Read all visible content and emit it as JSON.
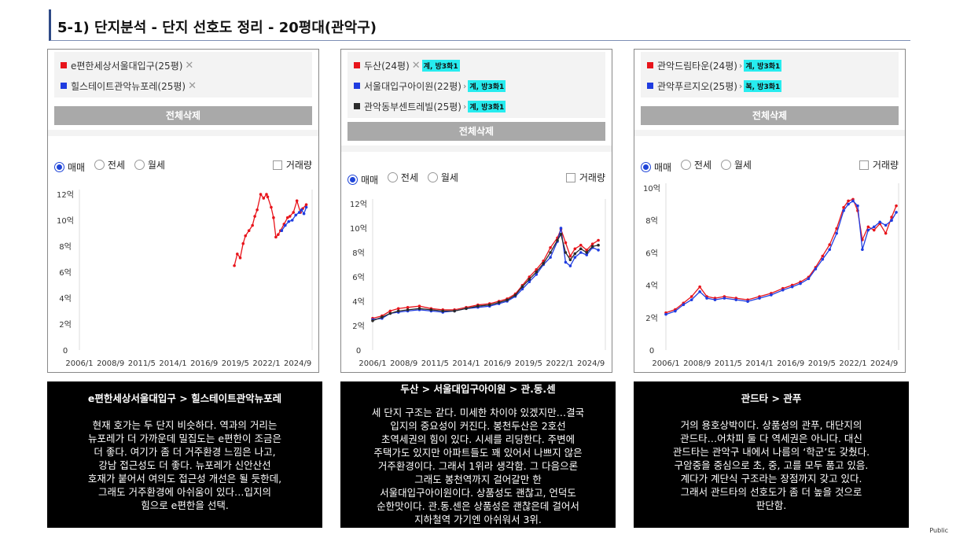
{
  "title": "5-1) 단지분석 - 단지 선호도 정리 - 20평대(관악구)",
  "common": {
    "delete_all": "전체삭제",
    "radio_sale": "매매",
    "radio_jeonse": "전세",
    "radio_monthly": "월세",
    "volume": "거래량",
    "x_ticks": [
      "2006/1",
      "2008/9",
      "2011/5",
      "2014/1",
      "2016/9",
      "2019/5",
      "2022/1",
      "2024/9"
    ]
  },
  "footer": {
    "public": "Public"
  },
  "colors": {
    "red": "#e8141b",
    "blue": "#1f3ce0",
    "black": "#2b2b2b",
    "highlight": "#27ecef"
  },
  "panels": [
    {
      "tags": [
        {
          "name": "e편한세상서울대입구(25평)",
          "color": "#e8141b",
          "close": "✕",
          "note": ""
        },
        {
          "name": "힐스테이트관악뉴포레(25평)",
          "color": "#1f3ce0",
          "close": "✕",
          "note": ""
        }
      ],
      "description": {
        "title": "e편한세상서울대입구 > 힐스테이트관악뉴포레",
        "lines": [
          "현재 호가는 두 단지 비슷하다. 역과의 거리는",
          "뉴포레가 더 가까운데 밀집도는 e편한이 조금은",
          "더 좋다. 여기가 좀 더 거주환경 느낌은 나고,",
          "강남 접근성도 더 좋다. 뉴포레가 신안산선",
          "호재가 붙어서 여의도 접근성 개선은 될 듯한데,",
          "그래도 거주환경에 아쉬움이 있다…입지의",
          "힘으로 e편한을 선택."
        ]
      },
      "chart_data": {
        "type": "line",
        "y_ticks": [
          "0",
          "2억",
          "4억",
          "6억",
          "8억",
          "10억",
          "12억"
        ],
        "ylim": [
          0,
          12
        ],
        "xlim": [
          2006.0,
          2025.9
        ],
        "series": [
          {
            "color": "#e8141b",
            "x": [
              2019.25,
              2019.5,
              2019.75,
              2020.0,
              2020.2,
              2020.5,
              2020.8,
              2021.0,
              2021.2,
              2021.5,
              2021.75,
              2022.0,
              2022.1,
              2022.4,
              2022.6,
              2022.8,
              2023.0,
              2023.2,
              2023.5,
              2023.8,
              2024.0,
              2024.3,
              2024.6,
              2024.9,
              2025.1,
              2025.4
            ],
            "y": [
              6.5,
              7.4,
              7.1,
              8.2,
              8.8,
              9.2,
              9.6,
              10.3,
              10.8,
              12.0,
              11.7,
              12.0,
              11.8,
              11.0,
              10.2,
              8.7,
              8.9,
              9.2,
              9.7,
              10.2,
              10.3,
              10.6,
              11.5,
              10.6,
              10.9,
              11.2
            ]
          },
          {
            "color": "#1f3ce0",
            "x": [
              2023.3,
              2023.6,
              2023.9,
              2024.2,
              2024.5,
              2024.8,
              2025.0,
              2025.2,
              2025.4
            ],
            "y": [
              9.2,
              9.6,
              9.9,
              10.0,
              10.4,
              10.6,
              10.8,
              10.5,
              11.0
            ]
          }
        ]
      }
    },
    {
      "tags": [
        {
          "name": "두산(24평)",
          "color": "#e8141b",
          "close": "✕",
          "note": "계, 방3화1"
        },
        {
          "name": "서울대입구아이원(22평)",
          "color": "#1f3ce0",
          "close": "",
          "note": "계, 방3화1"
        },
        {
          "name": "관악동부센트레빌(25평)",
          "color": "#2b2b2b",
          "close": "",
          "note": "계, 방3화1"
        }
      ],
      "description": {
        "title": "두산 > 서울대입구아이원 > 관.동.센",
        "lines": [
          "세 단지 구조는 같다. 미세한 차이야 있겠지만…결국",
          "입지의 중요성이 커진다. 봉천두산은 2호선",
          "초역세권의 힘이 있다. 시세를 리딩한다. 주변에",
          "주택가도 있지만 아파트들도 꽤 있어서 나쁘지 않은",
          "거주환경이다. 그래서 1위라 생각함. 그 다음으론",
          "그래도 봉천역까지 걸어갈만 한",
          "서울대입구아이원이다. 상품성도 괜찮고, 언덕도",
          "순한맛이다. 관.동.센은 상품성은 괜찮은데 걸어서",
          "지하철역 가기엔 아쉬워서 3위."
        ]
      },
      "chart_data": {
        "type": "line",
        "y_ticks": [
          "0",
          "2억",
          "4억",
          "6억",
          "8억",
          "10억",
          "12억"
        ],
        "ylim": [
          0,
          12
        ],
        "xlim": [
          2006.0,
          2025.9
        ],
        "series": [
          {
            "color": "#e8141b",
            "x": [
              2006.0,
              2006.8,
              2007.5,
              2008.2,
              2009.0,
              2010.0,
              2011.0,
              2012.0,
              2013.0,
              2014.0,
              2015.0,
              2016.0,
              2016.8,
              2017.5,
              2018.2,
              2018.8,
              2019.4,
              2020.0,
              2020.6,
              2021.2,
              2021.8,
              2022.1,
              2022.5,
              2022.9,
              2023.3,
              2023.8,
              2024.3,
              2024.8,
              2025.3
            ],
            "y": [
              2.6,
              2.8,
              3.2,
              3.4,
              3.5,
              3.6,
              3.4,
              3.3,
              3.3,
              3.5,
              3.7,
              3.8,
              4.0,
              4.2,
              4.6,
              5.3,
              6.0,
              6.6,
              7.3,
              8.4,
              9.2,
              9.9,
              8.8,
              7.7,
              8.3,
              8.6,
              8.2,
              8.7,
              9.0
            ]
          },
          {
            "color": "#1f3ce0",
            "x": [
              2006.0,
              2006.8,
              2007.5,
              2008.2,
              2009.0,
              2010.0,
              2011.0,
              2012.0,
              2013.0,
              2014.0,
              2015.0,
              2016.0,
              2016.8,
              2017.5,
              2018.2,
              2018.8,
              2019.4,
              2020.0,
              2020.6,
              2021.2,
              2021.8,
              2022.1,
              2022.5,
              2022.9,
              2023.3,
              2023.8,
              2024.3,
              2024.8,
              2025.3
            ],
            "y": [
              2.5,
              2.6,
              3.0,
              3.1,
              3.2,
              3.3,
              3.2,
              3.1,
              3.2,
              3.4,
              3.5,
              3.6,
              3.8,
              4.0,
              4.4,
              5.0,
              5.6,
              6.2,
              7.0,
              7.6,
              8.9,
              10.0,
              7.2,
              6.9,
              7.6,
              8.0,
              7.8,
              8.4,
              8.2
            ]
          },
          {
            "color": "#2b2b2b",
            "x": [
              2006.0,
              2006.8,
              2007.5,
              2008.2,
              2009.0,
              2010.0,
              2011.0,
              2012.0,
              2013.0,
              2014.0,
              2015.0,
              2016.0,
              2016.8,
              2017.5,
              2018.2,
              2018.8,
              2019.4,
              2020.0,
              2020.6,
              2021.2,
              2021.8,
              2022.1,
              2022.5,
              2022.9,
              2023.3,
              2023.8,
              2024.3,
              2024.8,
              2025.3
            ],
            "y": [
              2.4,
              2.7,
              3.0,
              3.2,
              3.3,
              3.4,
              3.3,
              3.2,
              3.2,
              3.4,
              3.6,
              3.7,
              3.9,
              4.1,
              4.5,
              5.2,
              5.8,
              6.4,
              7.1,
              8.0,
              9.0,
              9.5,
              8.0,
              7.4,
              7.9,
              8.3,
              8.0,
              8.5,
              8.6
            ]
          }
        ]
      }
    },
    {
      "tags": [
        {
          "name": "관악드림타운(24평)",
          "color": "#e8141b",
          "close": "",
          "note": "계, 방3화1"
        },
        {
          "name": "관악푸르지오(25평)",
          "color": "#1f3ce0",
          "close": "",
          "note": "복, 방3화1"
        }
      ],
      "description": {
        "title": "관드타 > 관푸",
        "lines": [
          "거의 용호상박이다. 상품성의 관푸, 대단지의",
          "관드타…어차피 둘 다 역세권은 아니다. 대신",
          "관드타는 관악구 내에서 나름의 ‘학군’도 갖췄다.",
          "구암중을 중심으로 초, 중, 고를 모두 품고 있음.",
          "계다가 계단식 구조라는 장점까지 갖고 있다.",
          "그래서 관드타의 선호도가 좀 더 높을 것으로",
          "판단함."
        ]
      },
      "chart_data": {
        "type": "line",
        "y_ticks": [
          "0",
          "2억",
          "4억",
          "6억",
          "8억",
          "10억"
        ],
        "ylim": [
          0,
          10
        ],
        "xlim": [
          2006.0,
          2025.9
        ],
        "series": [
          {
            "color": "#e8141b",
            "x": [
              2006.0,
              2006.8,
              2007.5,
              2008.2,
              2008.9,
              2009.5,
              2010.2,
              2011.0,
              2012.0,
              2013.0,
              2014.0,
              2015.0,
              2016.0,
              2016.8,
              2017.5,
              2018.2,
              2018.8,
              2019.4,
              2020.0,
              2020.6,
              2021.2,
              2021.6,
              2022.0,
              2022.4,
              2022.8,
              2023.3,
              2023.8,
              2024.3,
              2024.8,
              2025.3,
              2025.7
            ],
            "y": [
              2.3,
              2.5,
              2.9,
              3.3,
              3.9,
              3.3,
              3.2,
              3.3,
              3.2,
              3.1,
              3.3,
              3.5,
              3.8,
              4.0,
              4.2,
              4.5,
              5.1,
              5.8,
              6.5,
              7.5,
              8.8,
              9.2,
              9.3,
              8.6,
              6.8,
              7.6,
              7.4,
              7.8,
              7.2,
              8.2,
              8.9
            ]
          },
          {
            "color": "#1f3ce0",
            "x": [
              2006.0,
              2006.8,
              2007.5,
              2008.2,
              2008.9,
              2009.5,
              2010.2,
              2011.0,
              2012.0,
              2013.0,
              2014.0,
              2015.0,
              2016.0,
              2016.8,
              2017.5,
              2018.2,
              2018.8,
              2019.4,
              2020.0,
              2020.6,
              2021.2,
              2021.6,
              2022.0,
              2022.4,
              2022.8,
              2023.3,
              2023.8,
              2024.3,
              2024.8,
              2025.3,
              2025.7
            ],
            "y": [
              2.2,
              2.4,
              2.8,
              3.1,
              3.6,
              3.2,
              3.1,
              3.2,
              3.1,
              3.0,
              3.2,
              3.4,
              3.7,
              3.9,
              4.1,
              4.4,
              5.0,
              5.6,
              6.2,
              7.2,
              8.6,
              9.0,
              9.2,
              8.9,
              6.2,
              7.4,
              7.6,
              7.9,
              7.7,
              8.0,
              8.5
            ]
          }
        ]
      }
    }
  ]
}
